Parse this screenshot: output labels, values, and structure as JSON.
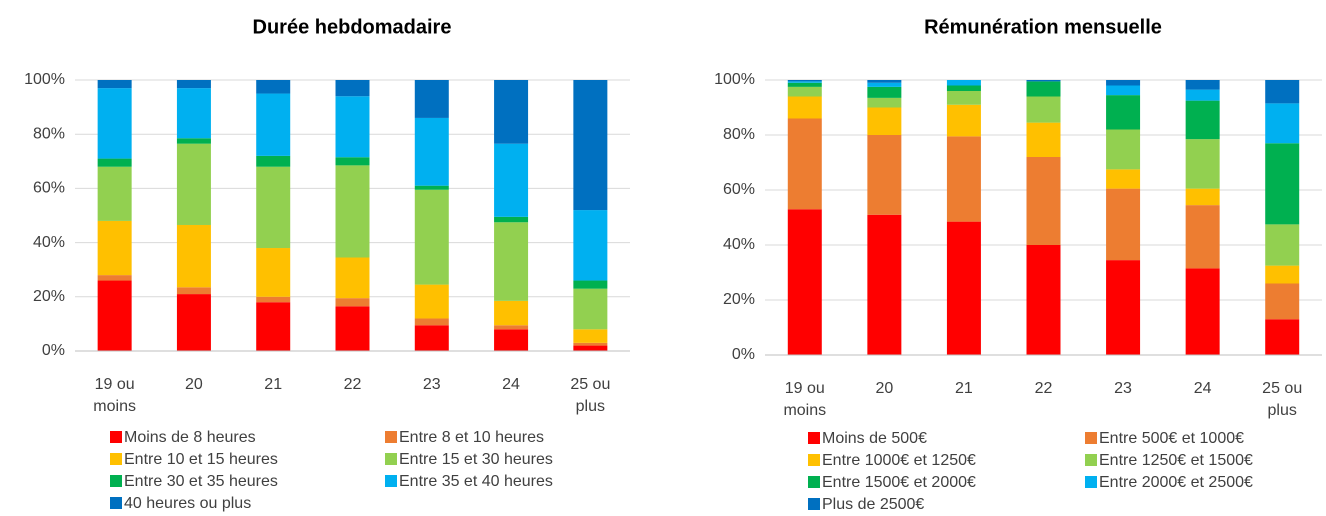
{
  "chart_data": [
    {
      "type": "bar",
      "stacked": true,
      "title": "Durée hebdomadaire",
      "categories": [
        "19 ou moins",
        "20",
        "21",
        "22",
        "23",
        "24",
        "25 ou plus"
      ],
      "series": [
        {
          "name": "Moins de 8 heures",
          "color": "#ff0000",
          "values": [
            26,
            21,
            18,
            16.5,
            9.5,
            8,
            2
          ]
        },
        {
          "name": "Entre 8 et 10 heures",
          "color": "#ed7d31",
          "values": [
            2,
            2.5,
            2,
            3,
            2.5,
            1.5,
            1
          ]
        },
        {
          "name": "Entre 10 et 15 heures",
          "color": "#ffc000",
          "values": [
            20,
            23,
            18,
            15,
            12.5,
            9,
            5
          ]
        },
        {
          "name": "Entre 15 et 30 heures",
          "color": "#92d050",
          "values": [
            20,
            30,
            30,
            34,
            35,
            29,
            15
          ]
        },
        {
          "name": "Entre 30 et 35 heures",
          "color": "#00b050",
          "values": [
            3,
            2,
            4,
            3,
            1.5,
            2,
            3
          ]
        },
        {
          "name": "Entre 35 et 40 heures",
          "color": "#00b0f0",
          "values": [
            26,
            18.5,
            23,
            22.5,
            25,
            27,
            26
          ]
        },
        {
          "name": "40 heures ou plus",
          "color": "#0070c0",
          "values": [
            3,
            3,
            5,
            6,
            14,
            23.5,
            48
          ]
        }
      ],
      "ylim": [
        0,
        100
      ],
      "yticks": [
        {
          "value": 0,
          "label": "0%"
        },
        {
          "value": 20,
          "label": "20%"
        },
        {
          "value": 40,
          "label": "40%"
        },
        {
          "value": 60,
          "label": "60%"
        },
        {
          "value": 80,
          "label": "80%"
        },
        {
          "value": 100,
          "label": "100%"
        }
      ],
      "grid": true,
      "legend": "bottom"
    },
    {
      "type": "bar",
      "stacked": true,
      "title": "Rémunération mensuelle",
      "categories": [
        "19 ou moins",
        "20",
        "21",
        "22",
        "23",
        "24",
        "25 ou plus"
      ],
      "series": [
        {
          "name": "Moins de 500€",
          "color": "#ff0000",
          "values": [
            53,
            51,
            48.5,
            40,
            34.5,
            31.5,
            13
          ]
        },
        {
          "name": "Entre 500€ et 1000€",
          "color": "#ed7d31",
          "values": [
            33,
            29,
            31,
            32,
            26,
            23,
            13
          ]
        },
        {
          "name": "Entre 1000€ et 1250€",
          "color": "#ffc000",
          "values": [
            8,
            10,
            11.5,
            12.5,
            7,
            6,
            6.5
          ]
        },
        {
          "name": "Entre 1250€ et 1500€",
          "color": "#92d050",
          "values": [
            3.5,
            3.5,
            5,
            9.5,
            14.5,
            18,
            15
          ]
        },
        {
          "name": "Entre 1500€ et 2000€",
          "color": "#00b050",
          "values": [
            1.5,
            4,
            2,
            5.5,
            12.5,
            14,
            29.5
          ]
        },
        {
          "name": "Entre 2000€ et 2500€",
          "color": "#00b0f0",
          "values": [
            0.5,
            1.5,
            2,
            0,
            3.5,
            4,
            14.5
          ]
        },
        {
          "name": "Plus de 2500€",
          "color": "#0070c0",
          "values": [
            0.5,
            1,
            0,
            0.5,
            2,
            3.5,
            8.5
          ]
        }
      ],
      "ylim": [
        0,
        100
      ],
      "yticks": [
        {
          "value": 0,
          "label": "0%"
        },
        {
          "value": 20,
          "label": "20%"
        },
        {
          "value": 40,
          "label": "40%"
        },
        {
          "value": 60,
          "label": "60%"
        },
        {
          "value": 80,
          "label": "80%"
        },
        {
          "value": 100,
          "label": "100%"
        }
      ],
      "grid": true,
      "legend": "bottom"
    }
  ]
}
